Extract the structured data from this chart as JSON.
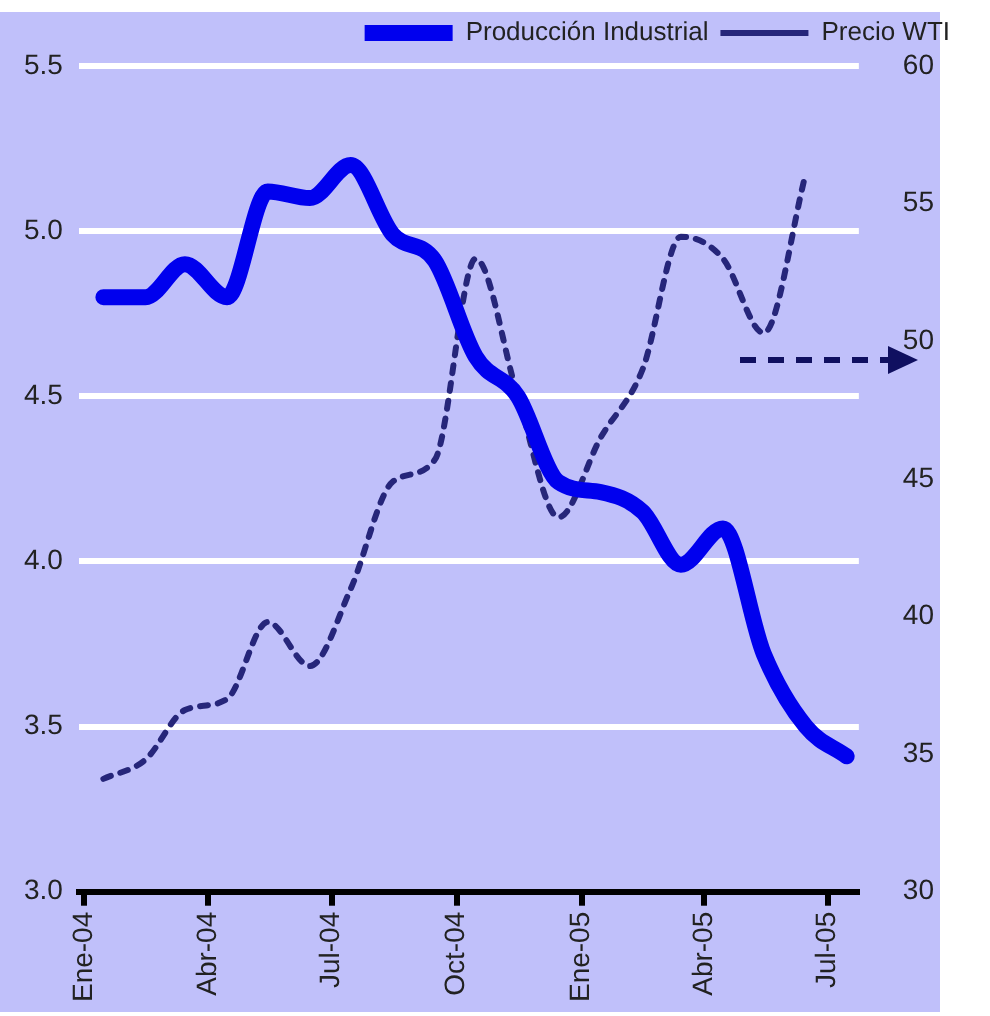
{
  "chart_data": {
    "type": "line",
    "x": [
      "2004-01-15",
      "2004-02-15",
      "2004-03-15",
      "2004-04-15",
      "2004-05-15",
      "2004-06-15",
      "2004-07-15",
      "2004-08-15",
      "2004-09-15",
      "2004-10-15",
      "2004-11-15",
      "2004-12-15",
      "2005-01-15",
      "2005-02-15",
      "2005-03-15",
      "2005-04-15",
      "2005-05-15",
      "2005-06-15",
      "2005-07-15"
    ],
    "series": [
      {
        "name": "Producción Industrial",
        "color": "#0000ee",
        "line_style": "solid",
        "values": [
          4.8,
          4.8,
          4.9,
          4.8,
          5.12,
          5.1,
          5.2,
          4.99,
          4.91,
          4.62,
          4.5,
          4.24,
          4.21,
          4.15,
          3.99,
          4.1,
          3.72,
          3.5,
          3.41
        ]
      },
      {
        "name": "Precio WTI",
        "color": "#26267a",
        "line_style": "dotted",
        "axis": "y2",
        "values": [
          34.1,
          34.8,
          36.6,
          37,
          39.8,
          38.2,
          41,
          44.9,
          45.7,
          53,
          48,
          43.6,
          46.5,
          49,
          53.8,
          53,
          50.3,
          56.1,
          null
        ]
      }
    ],
    "xlim": [
      "2003-12-28",
      "2005-07-24"
    ],
    "xticks": [
      {
        "value": "2004-01-01",
        "label": "Ene-04"
      },
      {
        "value": "2004-04-01",
        "label": "Abr-04"
      },
      {
        "value": "2004-07-01",
        "label": "Jul-04"
      },
      {
        "value": "2004-10-01",
        "label": "Oct-04"
      },
      {
        "value": "2005-01-01",
        "label": "Ene-05"
      },
      {
        "value": "2005-04-01",
        "label": "Abr-05"
      },
      {
        "value": "2005-07-01",
        "label": "Jul-05"
      }
    ],
    "ylim": [
      3,
      5.5
    ],
    "yticks": [
      {
        "value": 3,
        "label": "3.0"
      },
      {
        "value": 3.5,
        "label": "3.5"
      },
      {
        "value": 4,
        "label": "4.0"
      },
      {
        "value": 4.5,
        "label": "4.5"
      },
      {
        "value": 5,
        "label": "5.0"
      },
      {
        "value": 5.5,
        "label": "5.5"
      }
    ],
    "y2lim": [
      30,
      60
    ],
    "y2ticks": [
      30,
      35,
      40,
      45,
      50,
      55,
      60
    ],
    "grid": "y",
    "legend": "top right",
    "marker": "none"
  }
}
